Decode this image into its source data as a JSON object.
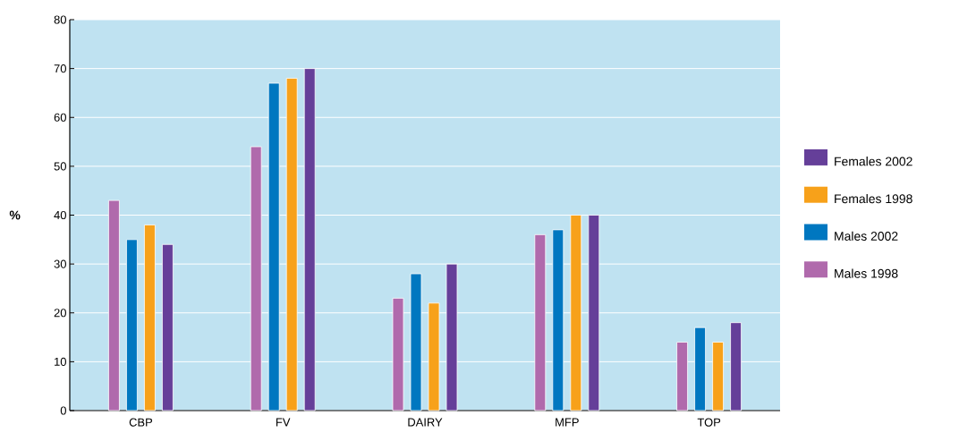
{
  "chart_data": {
    "type": "bar",
    "ylabel": "%",
    "categories": [
      "CBP",
      "FV",
      "DAIRY",
      "MFP",
      "TOP"
    ],
    "series": [
      {
        "name": "Males 1998",
        "color": "#b06aac",
        "values": [
          43,
          54,
          23,
          36,
          14
        ]
      },
      {
        "name": "Males 2002",
        "color": "#0077c0",
        "values": [
          35,
          67,
          28,
          37,
          17
        ]
      },
      {
        "name": "Females 1998",
        "color": "#f7a11a",
        "values": [
          38,
          68,
          22,
          40,
          14
        ]
      },
      {
        "name": "Females 2002",
        "color": "#653f99",
        "values": [
          34,
          70,
          30,
          40,
          18
        ]
      }
    ],
    "ylim": [
      0,
      80
    ],
    "yticks": [
      0,
      10,
      20,
      30,
      40,
      50,
      60,
      70,
      80
    ],
    "grid": "y",
    "legend": "right"
  }
}
